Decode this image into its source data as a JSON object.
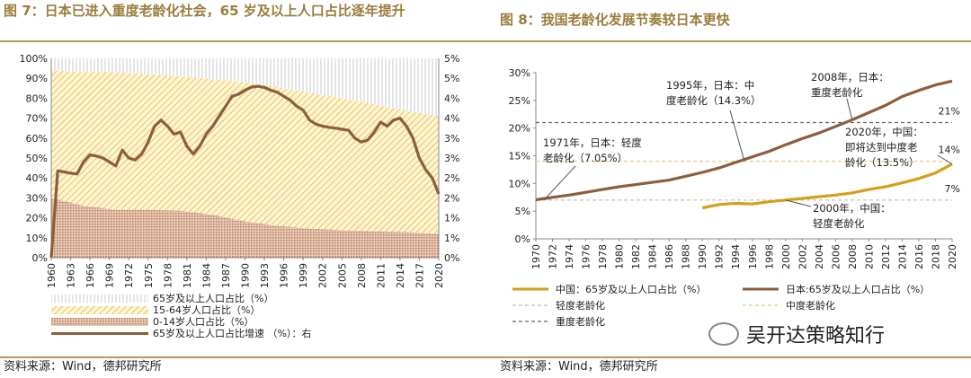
{
  "left_panel": {
    "title": "图 7：日本已进入重度老龄化社会，65 岁及以上人口占比逐年提升",
    "source": "资料来源：Wind，德邦研究所"
  },
  "right_panel": {
    "title": "图 8：我国老龄化发展节奏较日本更快",
    "source": "资料来源：Wind，德邦研究所"
  },
  "watermark": {
    "text": "吴开达策略知行",
    "icon": "wechat-icon"
  },
  "colors": {
    "accent": "#9a7d3c",
    "brown": "#8c5e3c",
    "gold": "#d4a017",
    "hatch": "#e8c75a",
    "stipple": "#b9785a"
  },
  "chart_data": [
    {
      "type": "area",
      "title": "图 7：日本已进入重度老龄化社会，65 岁及以上人口占比逐年提升",
      "x_tick_labels": [
        "1960",
        "1963",
        "1966",
        "1969",
        "1972",
        "1975",
        "1978",
        "1981",
        "1984",
        "1987",
        "1990",
        "1993",
        "1996",
        "1999",
        "2002",
        "2005",
        "2008",
        "2011",
        "2014",
        "2017",
        "2020"
      ],
      "y_left_ticks": [
        "0%",
        "10%",
        "20%",
        "30%",
        "40%",
        "50%",
        "60%",
        "70%",
        "80%",
        "90%",
        "100%"
      ],
      "y_right_ticks": [
        "0%",
        "1%",
        "1%",
        "2%",
        "2%",
        "3%",
        "3%",
        "4%",
        "4%",
        "5%",
        "5%"
      ],
      "ylim_left": [
        0,
        100
      ],
      "ylim_right": [
        0,
        5
      ],
      "stacked_series": [
        {
          "name": "0-14岁人口占比（%）",
          "years": [
            1960,
            1965,
            1970,
            1975,
            1980,
            1985,
            1990,
            1995,
            2000,
            2005,
            2010,
            2015,
            2020
          ],
          "values": [
            30,
            26,
            24,
            24,
            23.5,
            21.5,
            18.2,
            16,
            14.6,
            13.8,
            13.2,
            12.7,
            12
          ]
        },
        {
          "name": "15-64岁人口占比（%）",
          "years": [
            1960,
            1965,
            1970,
            1975,
            1980,
            1985,
            1990,
            1995,
            2000,
            2005,
            2010,
            2015,
            2020
          ],
          "values": [
            64,
            67,
            69,
            68,
            67.4,
            68,
            69.7,
            69.5,
            68.2,
            66,
            63.7,
            60.9,
            59
          ]
        },
        {
          "name": "65岁及以上人口占比（%）",
          "years": [
            1960,
            1965,
            1970,
            1975,
            1980,
            1985,
            1990,
            1995,
            2000,
            2005,
            2010,
            2015,
            2020
          ],
          "values": [
            6,
            7,
            7,
            8,
            9,
            10.5,
            12.1,
            14.5,
            17.2,
            20.2,
            23.1,
            26.4,
            29
          ]
        }
      ],
      "growth_series": {
        "name": "65岁及以上人口占比增速 （%）：右",
        "years": [
          1960,
          1961,
          1962,
          1963,
          1964,
          1965,
          1966,
          1967,
          1968,
          1969,
          1970,
          1971,
          1972,
          1973,
          1974,
          1975,
          1976,
          1977,
          1978,
          1979,
          1980,
          1981,
          1982,
          1983,
          1984,
          1985,
          1986,
          1987,
          1988,
          1989,
          1990,
          1991,
          1992,
          1993,
          1994,
          1995,
          1996,
          1997,
          1998,
          1999,
          2000,
          2001,
          2002,
          2003,
          2004,
          2005,
          2006,
          2007,
          2008,
          2009,
          2010,
          2011,
          2012,
          2013,
          2014,
          2015,
          2016,
          2017,
          2018,
          2019,
          2020
        ],
        "values": [
          0,
          2.18,
          2.15,
          2.12,
          2.1,
          2.4,
          2.58,
          2.55,
          2.5,
          2.4,
          2.3,
          2.7,
          2.5,
          2.45,
          2.6,
          2.9,
          3.3,
          3.45,
          3.3,
          3.1,
          3.15,
          2.8,
          2.6,
          2.8,
          3.1,
          3.3,
          3.55,
          3.8,
          4.05,
          4.1,
          4.2,
          4.28,
          4.3,
          4.27,
          4.2,
          4.15,
          4.05,
          3.95,
          3.8,
          3.7,
          3.45,
          3.35,
          3.3,
          3.27,
          3.25,
          3.22,
          3.2,
          3.0,
          2.9,
          2.95,
          3.15,
          3.4,
          3.3,
          3.45,
          3.5,
          3.3,
          3.0,
          2.5,
          2.2,
          2.0,
          1.6
        ]
      },
      "legend": [
        "65岁及以上人口占比（%）",
        "15-64岁人口占比（%）",
        "0-14岁人口占比（%）",
        "65岁及以上人口占比增速 （%）：右"
      ]
    },
    {
      "type": "line",
      "title": "图 8：我国老龄化发展节奏较日本更快",
      "x_tick_labels": [
        "1970",
        "1972",
        "1974",
        "1976",
        "1978",
        "1980",
        "1982",
        "1984",
        "1986",
        "1988",
        "1990",
        "1992",
        "1994",
        "1996",
        "1998",
        "2000",
        "2002",
        "2004",
        "2006",
        "2008",
        "2010",
        "2012",
        "2014",
        "2016",
        "2018",
        "2020"
      ],
      "y_ticks": [
        "0%",
        "5%",
        "10%",
        "15%",
        "20%",
        "25%",
        "30%"
      ],
      "ylim": [
        0,
        30
      ],
      "series": [
        {
          "name": "中国：65岁及以上人口占比（%）",
          "x": [
            1990,
            1992,
            1994,
            1996,
            1998,
            2000,
            2002,
            2004,
            2006,
            2008,
            2010,
            2012,
            2014,
            2016,
            2018,
            2020
          ],
          "values": [
            5.6,
            6.2,
            6.4,
            6.3,
            6.7,
            7.0,
            7.3,
            7.6,
            7.9,
            8.3,
            8.9,
            9.4,
            10.1,
            10.9,
            11.9,
            13.5
          ]
        },
        {
          "name": "日本:65岁及以上人口占比（%）",
          "x": [
            1970,
            1972,
            1974,
            1976,
            1978,
            1980,
            1982,
            1984,
            1986,
            1988,
            1990,
            1992,
            1994,
            1996,
            1998,
            2000,
            2002,
            2004,
            2006,
            2008,
            2010,
            2012,
            2014,
            2016,
            2018,
            2020
          ],
          "values": [
            7.05,
            7.5,
            7.9,
            8.4,
            8.9,
            9.4,
            9.8,
            10.2,
            10.6,
            11.3,
            12.0,
            12.8,
            13.8,
            14.8,
            15.8,
            17.0,
            18.1,
            19.1,
            20.3,
            21.5,
            22.8,
            24.1,
            25.7,
            26.8,
            27.8,
            28.5
          ]
        },
        {
          "name": "轻度老龄化",
          "constant": 7
        },
        {
          "name": "中度老龄化",
          "constant": 14
        },
        {
          "name": "重度老龄化",
          "constant": 21
        }
      ],
      "line_labels": [
        "21%",
        "14%",
        "7%"
      ],
      "annotations": [
        {
          "lines": [
            "1971年，日本：轻度",
            "老龄化（7.05%）"
          ],
          "target": [
            1971,
            7.05
          ]
        },
        {
          "lines": [
            "1995年，日本：中",
            "度老龄化（14.3%）"
          ],
          "target": [
            1995,
            14.3
          ]
        },
        {
          "lines": [
            "2008年，日本：",
            "重度老龄化"
          ],
          "target": [
            2008,
            21.5
          ]
        },
        {
          "lines": [
            "2020年，中国：",
            "即将达到中度老",
            "龄化（13.5%）"
          ],
          "target": [
            2020,
            13.5
          ]
        },
        {
          "lines": [
            "2000年，中国：",
            "轻度老龄化"
          ],
          "target": [
            2000,
            7.0
          ]
        }
      ],
      "legend": [
        "中国：65岁及以上人口占比（%）",
        "日本:65岁及以上人口占比（%）",
        "轻度老龄化",
        "中度老龄化",
        "重度老龄化"
      ]
    }
  ]
}
